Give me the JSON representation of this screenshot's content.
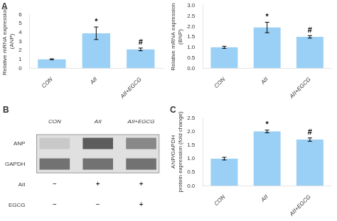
{
  "chart_data": [
    {
      "type": "bar",
      "title": "A",
      "y_label": "Relative mRNA expression\n(ANP)",
      "categories": [
        "CON",
        "AII",
        "AII+EGCG"
      ],
      "values": [
        1.0,
        3.9,
        2.1
      ],
      "errors": [
        0.05,
        0.7,
        0.15
      ],
      "annotations": [
        null,
        "*",
        "#"
      ],
      "ylim": [
        0,
        6
      ],
      "yticks": [
        0,
        1,
        2,
        3,
        4,
        5,
        6
      ],
      "grid": false
    },
    {
      "type": "bar",
      "y_label": "Relative mRNA expression\n(BNP)",
      "categories": [
        "CON",
        "AII",
        "AII+EGCG"
      ],
      "values": [
        1.0,
        1.95,
        1.5
      ],
      "errors": [
        0.05,
        0.25,
        0.06
      ],
      "annotations": [
        null,
        "*",
        "#"
      ],
      "ylim": [
        0,
        3
      ],
      "yticks": [
        {
          "value": 0,
          "label": "0.0"
        },
        0.5,
        {
          "value": 1.0,
          "label": "1.0"
        },
        1.5,
        {
          "value": 2.0,
          "label": "2.0"
        },
        2.5,
        {
          "value": 3.0,
          "label": "3.0"
        }
      ],
      "grid": false
    },
    {
      "type": "blot",
      "title": "B",
      "categories": [
        "CON",
        "AII",
        "AII+EGCG"
      ],
      "rows": [
        {
          "name": "ANP",
          "values": [
            0.25,
            0.75,
            0.55
          ]
        },
        {
          "name": "GAPDH",
          "values": [
            0.65,
            0.65,
            0.65
          ]
        }
      ],
      "treatments": [
        {
          "name": "AII",
          "labels": [
            "−",
            "+",
            "+"
          ]
        },
        {
          "name": "EGCG",
          "labels": [
            "−",
            "−",
            "+"
          ]
        }
      ]
    },
    {
      "type": "bar",
      "title": "C",
      "y_label": "ANP/GAPDH\nprotein expression (fold change)",
      "categories": [
        "CON",
        "AII",
        "AII+EGCG"
      ],
      "values": [
        1.0,
        2.0,
        1.7
      ],
      "errors": [
        0.05,
        0.05,
        0.06
      ],
      "annotations": [
        null,
        "*",
        "#"
      ],
      "ylim": [
        0,
        2.5
      ],
      "yticks": [
        {
          "value": 0,
          "label": "0.0"
        },
        0.5,
        {
          "value": 1.0,
          "label": "1.0"
        },
        1.5,
        {
          "value": 2.0,
          "label": "2.0"
        },
        2.5
      ],
      "grid": false
    }
  ]
}
